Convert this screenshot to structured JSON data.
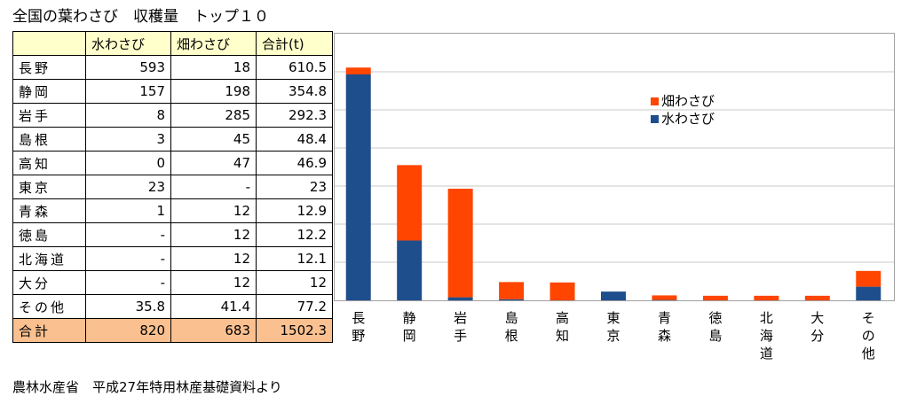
{
  "title": "全国の葉わさび　収穫量　トップ１０",
  "source": "農林水産省　平成27年特用林産基礎資料より",
  "table": {
    "columns": [
      "水わさび",
      "畑わさび",
      "合計(t)"
    ],
    "rows": [
      {
        "name": "長野",
        "water": "593",
        "field": "18",
        "total": "610.5"
      },
      {
        "name": "静岡",
        "water": "157",
        "field": "198",
        "total": "354.8"
      },
      {
        "name": "岩手",
        "water": "8",
        "field": "285",
        "total": "292.3"
      },
      {
        "name": "島根",
        "water": "3",
        "field": "45",
        "total": "48.4"
      },
      {
        "name": "高知",
        "water": "0",
        "field": "47",
        "total": "46.9"
      },
      {
        "name": "東京",
        "water": "23",
        "field": "-",
        "total": "23"
      },
      {
        "name": "青森",
        "water": "1",
        "field": "12",
        "total": "12.9"
      },
      {
        "name": "徳島",
        "water": "-",
        "field": "12",
        "total": "12.2"
      },
      {
        "name": "北海道",
        "water": "-",
        "field": "12",
        "total": "12.1"
      },
      {
        "name": "大分",
        "water": "-",
        "field": "12",
        "total": "12"
      },
      {
        "name": "その他",
        "water": "35.8",
        "field": "41.4",
        "total": "77.2"
      }
    ],
    "sum": {
      "name": "合計",
      "water": "820",
      "field": "683",
      "total": "1502.3"
    }
  },
  "chart_data": {
    "type": "bar",
    "stacked": true,
    "categories": [
      "長野",
      "静岡",
      "岩手",
      "島根",
      "高知",
      "東京",
      "青森",
      "徳島",
      "北海道",
      "大分",
      "その他"
    ],
    "series": [
      {
        "name": "水わさび",
        "color": "#1f4e8c",
        "values": [
          593,
          157,
          8,
          3,
          0,
          23,
          1,
          0,
          0,
          0,
          35.8
        ]
      },
      {
        "name": "畑わさび",
        "color": "#ff4500",
        "values": [
          18,
          198,
          285,
          45,
          47,
          0,
          12,
          12,
          12,
          12,
          41.4
        ]
      }
    ],
    "ylim": [
      0,
      700
    ],
    "grid": true,
    "legend_position": "top-right"
  }
}
